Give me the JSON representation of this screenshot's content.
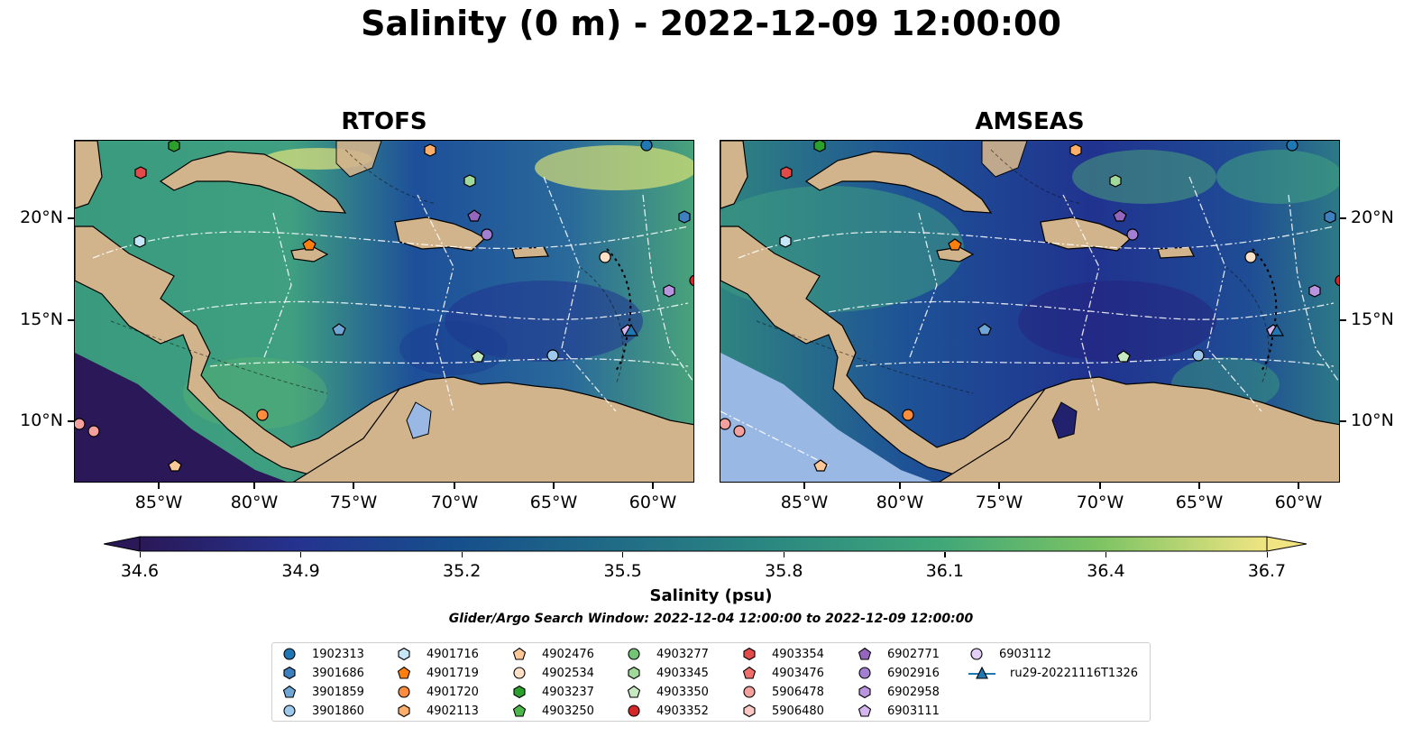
{
  "title": "Salinity (0 m) - 2022-12-09 12:00:00",
  "panels": [
    {
      "key": "rtofs",
      "title": "RTOFS"
    },
    {
      "key": "amseas",
      "title": "AMSEAS"
    }
  ],
  "axes": {
    "lon_ticks": [
      "85°W",
      "80°W",
      "75°W",
      "70°W",
      "65°W",
      "60°W"
    ],
    "lat_ticks": [
      "20°N",
      "15°N",
      "10°N"
    ]
  },
  "colorbar": {
    "label": "Salinity (psu)",
    "ticks": [
      "34.6",
      "34.9",
      "35.2",
      "35.5",
      "35.8",
      "36.1",
      "36.4",
      "36.7"
    ],
    "range": [
      34.6,
      36.7
    ],
    "extend": "both",
    "colormap": "haline"
  },
  "search_window": "Glider/Argo Search Window: 2022-12-04 12:00:00 to 2022-12-09 12:00:00",
  "colors": {
    "land": "#d2b48c",
    "pacific_fill": "#9ab8e4",
    "rivers": "#a8bcd8",
    "contours": "#ffffff"
  },
  "legend": {
    "items": [
      {
        "label": "1902313",
        "marker": "circle",
        "color": "#1f77b4"
      },
      {
        "label": "3901686",
        "marker": "hexagon",
        "color": "#3d7fbf"
      },
      {
        "label": "3901859",
        "marker": "pentagon",
        "color": "#6fa6d6"
      },
      {
        "label": "3901860",
        "marker": "circle",
        "color": "#9ec9ea"
      },
      {
        "label": "4901716",
        "marker": "hexagon",
        "color": "#c6e6f7"
      },
      {
        "label": "4901719",
        "marker": "pentagon",
        "color": "#ff7f0e"
      },
      {
        "label": "4901720",
        "marker": "circle",
        "color": "#fd8d3c"
      },
      {
        "label": "4902113",
        "marker": "hexagon",
        "color": "#fdae6b"
      },
      {
        "label": "4902476",
        "marker": "pentagon",
        "color": "#fdc897"
      },
      {
        "label": "4902534",
        "marker": "circle",
        "color": "#fde0c5"
      },
      {
        "label": "4903237",
        "marker": "hexagon",
        "color": "#2ca02c"
      },
      {
        "label": "4903250",
        "marker": "pentagon",
        "color": "#4cb84c"
      },
      {
        "label": "4903277",
        "marker": "circle",
        "color": "#74c476"
      },
      {
        "label": "4903345",
        "marker": "hexagon",
        "color": "#a1d99b"
      },
      {
        "label": "4903350",
        "marker": "pentagon",
        "color": "#c7e9c0"
      },
      {
        "label": "4903352",
        "marker": "circle",
        "color": "#d62728"
      },
      {
        "label": "4903354",
        "marker": "hexagon",
        "color": "#e34a4a"
      },
      {
        "label": "4903476",
        "marker": "pentagon",
        "color": "#ef6f6c"
      },
      {
        "label": "5906478",
        "marker": "circle",
        "color": "#f4a09c"
      },
      {
        "label": "5906480",
        "marker": "hexagon",
        "color": "#fbc8c4"
      },
      {
        "label": "6902771",
        "marker": "pentagon",
        "color": "#9467bd"
      },
      {
        "label": "6902916",
        "marker": "circle",
        "color": "#a27fd0"
      },
      {
        "label": "6902958",
        "marker": "hexagon",
        "color": "#b995e0"
      },
      {
        "label": "6903111",
        "marker": "pentagon",
        "color": "#d4b5f0"
      },
      {
        "label": "6903112",
        "marker": "circle",
        "color": "#e3cff7"
      },
      {
        "label": "ru29-20221116T1326",
        "marker": "triangle-line",
        "color": "#1f77b4"
      }
    ]
  }
}
